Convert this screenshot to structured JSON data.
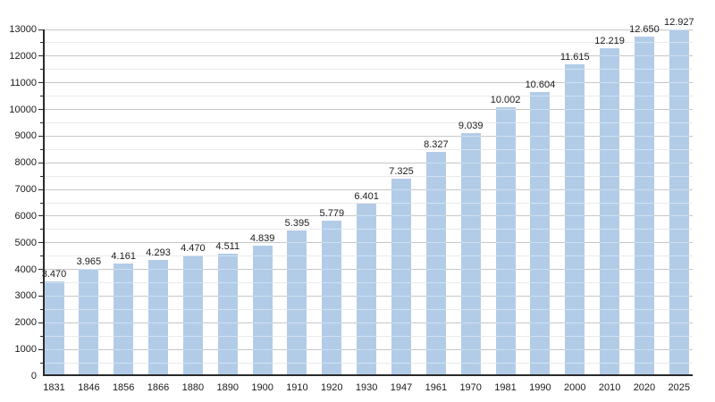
{
  "chart_data": {
    "type": "bar",
    "title": "",
    "xlabel": "",
    "ylabel": "",
    "categories": [
      "1831",
      "1846",
      "1856",
      "1866",
      "1880",
      "1890",
      "1900",
      "1910",
      "1920",
      "1930",
      "1947",
      "1961",
      "1970",
      "1981",
      "1990",
      "2000",
      "2010",
      "2020",
      "2025"
    ],
    "values": [
      3470,
      3965,
      4161,
      4293,
      4470,
      4511,
      4839,
      5395,
      5779,
      6401,
      7325,
      8327,
      9039,
      10002,
      10604,
      11615,
      12219,
      12650,
      12927
    ],
    "value_labels": [
      "3.470",
      "3.965",
      "4.161",
      "4.293",
      "4.470",
      "4.511",
      "4.839",
      "5.395",
      "5.779",
      "6.401",
      "7.325",
      "8.327",
      "9.039",
      "10.002",
      "10.604",
      "11.615",
      "12.219",
      "12.650",
      "12.927"
    ],
    "ylim": [
      0,
      13000
    ],
    "y_major_tick_interval": 1000,
    "y_minor_tick_interval": 500,
    "y_tick_labels": [
      "0",
      "1000",
      "2000",
      "3000",
      "4000",
      "5000",
      "6000",
      "7000",
      "8000",
      "9000",
      "10000",
      "11000",
      "12000",
      "13000"
    ],
    "grid": true,
    "legend_position": "none"
  },
  "colors": {
    "bar_fill": "#abc8e6",
    "grid_major": "#9a9a9a",
    "grid_minor": "#d9d9d9",
    "axis": "#2a2a2a",
    "text": "#1b1b1b",
    "background": "#ffffff"
  }
}
